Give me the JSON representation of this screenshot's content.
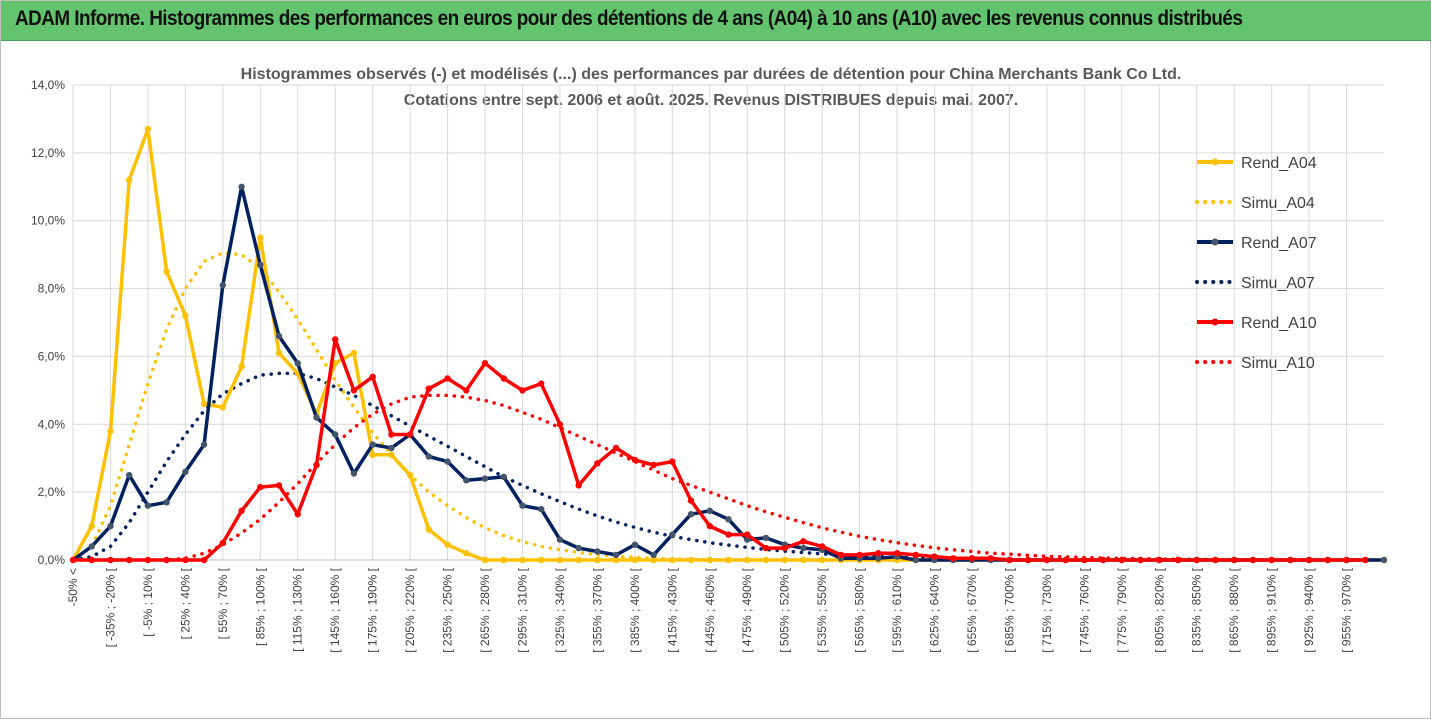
{
  "banner": {
    "title": "ADAM Informe. Histogrammes des performances en euros pour des détentions de 4 ans (A04) à 10 ans (A10) avec les revenus connus distribués"
  },
  "colors": {
    "banner_bg": "#63c36e",
    "a04": "#ffc000",
    "a07": "#002060",
    "a10": "#ff0000",
    "grid": "#d9d9d9"
  },
  "chart_data": {
    "type": "line",
    "title": "Histogrammes observés (-) et modélisés (...) des performances par durées de détention pour China Merchants Bank Co Ltd.",
    "subtitle": "Cotations entre sept. 2006 et août. 2025. Revenus DISTRIBUES depuis mai. 2007.",
    "ylim": [
      0,
      14
    ],
    "y_ticks": [
      "0,0%",
      "2,0%",
      "4,0%",
      "6,0%",
      "8,0%",
      "10,0%",
      "12,0%",
      "14,0%"
    ],
    "legend_position": "right",
    "x_labels": [
      "-50% <",
      "[ -35% ; -20% [",
      "[ -5% ; 10% [",
      "[ 25% ; 40% [",
      "[ 55% ; 70% [",
      "[ 85% ; 100% [",
      "[ 115% ; 130% [",
      "[ 145% ; 160% [",
      "[ 175% ; 190% [",
      "[ 205% ; 220% [",
      "[ 235% ; 250% [",
      "[ 265% ; 280% [",
      "[ 295% ; 310% [",
      "[ 325% ; 340% [",
      "[ 355% ; 370% [",
      "[ 385% ; 400% [",
      "[ 415% ; 430% [",
      "[ 445% ; 460% [",
      "[ 475% ; 490% [",
      "[ 505% ; 520% [",
      "[ 535% ; 550% [",
      "[ 565% ; 580% [",
      "[ 595% ; 610% [",
      "[ 625% ; 640% [",
      "[ 655% ; 670% [",
      "[ 685% ; 700% [",
      "[ 715% ; 730% [",
      "[ 745% ; 760% [",
      "[ 775% ; 790% [",
      "[ 805% ; 820% [",
      "[ 835% ; 850% [",
      "[ 865% ; 880% [",
      "[ 895% ; 910% [",
      "[ 925% ; 940% [",
      "[ 955% ; 970% ["
    ],
    "series": [
      {
        "name": "Rend_A04",
        "style": "solid",
        "color": "#ffc000",
        "values": [
          0,
          1,
          3.8,
          11.2,
          12.7,
          8.5,
          7.2,
          4.6,
          4.5,
          5.7,
          9.5,
          6.1,
          5.5,
          4.3,
          5.8,
          6.1,
          3.1,
          3.1,
          2.5,
          0.9,
          0.45,
          0.2,
          0,
          0,
          0,
          0,
          0,
          0,
          0,
          0,
          0,
          0,
          0,
          0,
          0,
          0,
          0,
          0,
          0,
          0,
          0,
          0,
          0,
          0,
          0,
          0,
          0,
          0,
          0,
          0,
          0,
          0,
          0,
          0,
          0,
          0,
          0,
          0,
          0,
          0,
          0,
          0,
          0,
          0,
          0,
          0,
          0,
          0,
          0,
          0,
          0
        ]
      },
      {
        "name": "Simu_A04",
        "style": "dotted",
        "color": "#ffc000",
        "values": [
          0,
          0.4,
          1.6,
          3.4,
          5.2,
          6.8,
          8.0,
          8.8,
          9.05,
          9.0,
          8.6,
          7.9,
          7.1,
          6.2,
          5.3,
          4.5,
          3.75,
          3.1,
          2.5,
          2.0,
          1.6,
          1.25,
          0.95,
          0.72,
          0.54,
          0.4,
          0.3,
          0.22,
          0.16,
          0.11,
          0.08,
          0.05,
          0.03,
          0.02,
          0.01,
          0,
          0,
          0,
          0,
          0,
          0,
          0,
          0,
          0,
          0,
          0,
          0,
          0,
          0,
          0,
          0,
          0,
          0,
          0,
          0,
          0,
          0,
          0,
          0,
          0,
          0,
          0,
          0,
          0,
          0,
          0,
          0,
          0,
          0,
          0,
          0
        ]
      },
      {
        "name": "Rend_A07",
        "style": "solid",
        "color": "#002060",
        "values": [
          0,
          0.4,
          1.0,
          2.5,
          1.6,
          1.7,
          2.6,
          3.4,
          8.1,
          11.0,
          8.7,
          6.6,
          5.8,
          4.2,
          3.7,
          2.55,
          3.4,
          3.3,
          3.7,
          3.05,
          2.9,
          2.35,
          2.4,
          2.45,
          1.6,
          1.5,
          0.6,
          0.35,
          0.25,
          0.15,
          0.45,
          0.15,
          0.75,
          1.35,
          1.45,
          1.2,
          0.6,
          0.65,
          0.45,
          0.35,
          0.3,
          0.05,
          0.05,
          0.05,
          0.1,
          0,
          0,
          0,
          0,
          0,
          0,
          0,
          0,
          0,
          0,
          0,
          0,
          0,
          0,
          0,
          0,
          0,
          0,
          0,
          0,
          0,
          0,
          0,
          0,
          0,
          0
        ]
      },
      {
        "name": "Simu_A07",
        "style": "dotted",
        "color": "#002060",
        "values": [
          0,
          0.1,
          0.4,
          1.1,
          2.0,
          2.9,
          3.7,
          4.4,
          4.9,
          5.2,
          5.45,
          5.5,
          5.5,
          5.35,
          5.1,
          4.85,
          4.55,
          4.25,
          3.95,
          3.65,
          3.35,
          3.05,
          2.75,
          2.45,
          2.2,
          1.95,
          1.72,
          1.5,
          1.3,
          1.12,
          0.96,
          0.82,
          0.7,
          0.6,
          0.51,
          0.44,
          0.37,
          0.31,
          0.26,
          0.22,
          0.18,
          0.15,
          0.12,
          0.1,
          0.08,
          0.06,
          0.05,
          0.04,
          0.03,
          0.02,
          0.02,
          0.01,
          0.01,
          0,
          0,
          0,
          0,
          0,
          0,
          0,
          0,
          0,
          0,
          0,
          0,
          0,
          0,
          0,
          0,
          0,
          0
        ]
      },
      {
        "name": "Rend_A10",
        "style": "solid",
        "color": "#ff0000",
        "values": [
          0,
          0,
          0,
          0,
          0,
          0,
          0,
          0,
          0.5,
          1.45,
          2.15,
          2.2,
          1.35,
          2.8,
          6.5,
          5.0,
          5.4,
          3.7,
          3.7,
          5.05,
          5.35,
          5.0,
          5.8,
          5.35,
          5.0,
          5.2,
          4.0,
          2.2,
          2.85,
          3.3,
          2.95,
          2.8,
          2.9,
          1.75,
          1.0,
          0.75,
          0.75,
          0.35,
          0.35,
          0.55,
          0.4,
          0.15,
          0.15,
          0.2,
          0.2,
          0.15,
          0.1,
          0.05,
          0.05,
          0.05,
          0,
          0,
          0,
          0,
          0,
          0,
          0,
          0,
          0,
          0,
          0,
          0,
          0,
          0,
          0,
          0,
          0,
          0,
          0,
          0
        ]
      },
      {
        "name": "Simu_A10",
        "style": "dotted",
        "color": "#ff0000",
        "values": [
          0,
          0,
          0,
          0,
          0,
          0,
          0.05,
          0.2,
          0.45,
          0.8,
          1.2,
          1.7,
          2.25,
          2.85,
          3.4,
          3.9,
          4.3,
          4.6,
          4.8,
          4.85,
          4.85,
          4.8,
          4.7,
          4.55,
          4.35,
          4.15,
          3.9,
          3.65,
          3.4,
          3.15,
          2.9,
          2.65,
          2.4,
          2.2,
          2.0,
          1.8,
          1.6,
          1.42,
          1.26,
          1.1,
          0.95,
          0.82,
          0.7,
          0.6,
          0.51,
          0.43,
          0.36,
          0.3,
          0.25,
          0.2,
          0.17,
          0.14,
          0.11,
          0.09,
          0.07,
          0.06,
          0.05,
          0.04,
          0.03,
          0.02,
          0.02,
          0.01,
          0.01,
          0.01,
          0,
          0,
          0,
          0,
          0,
          0,
          0
        ]
      }
    ]
  }
}
